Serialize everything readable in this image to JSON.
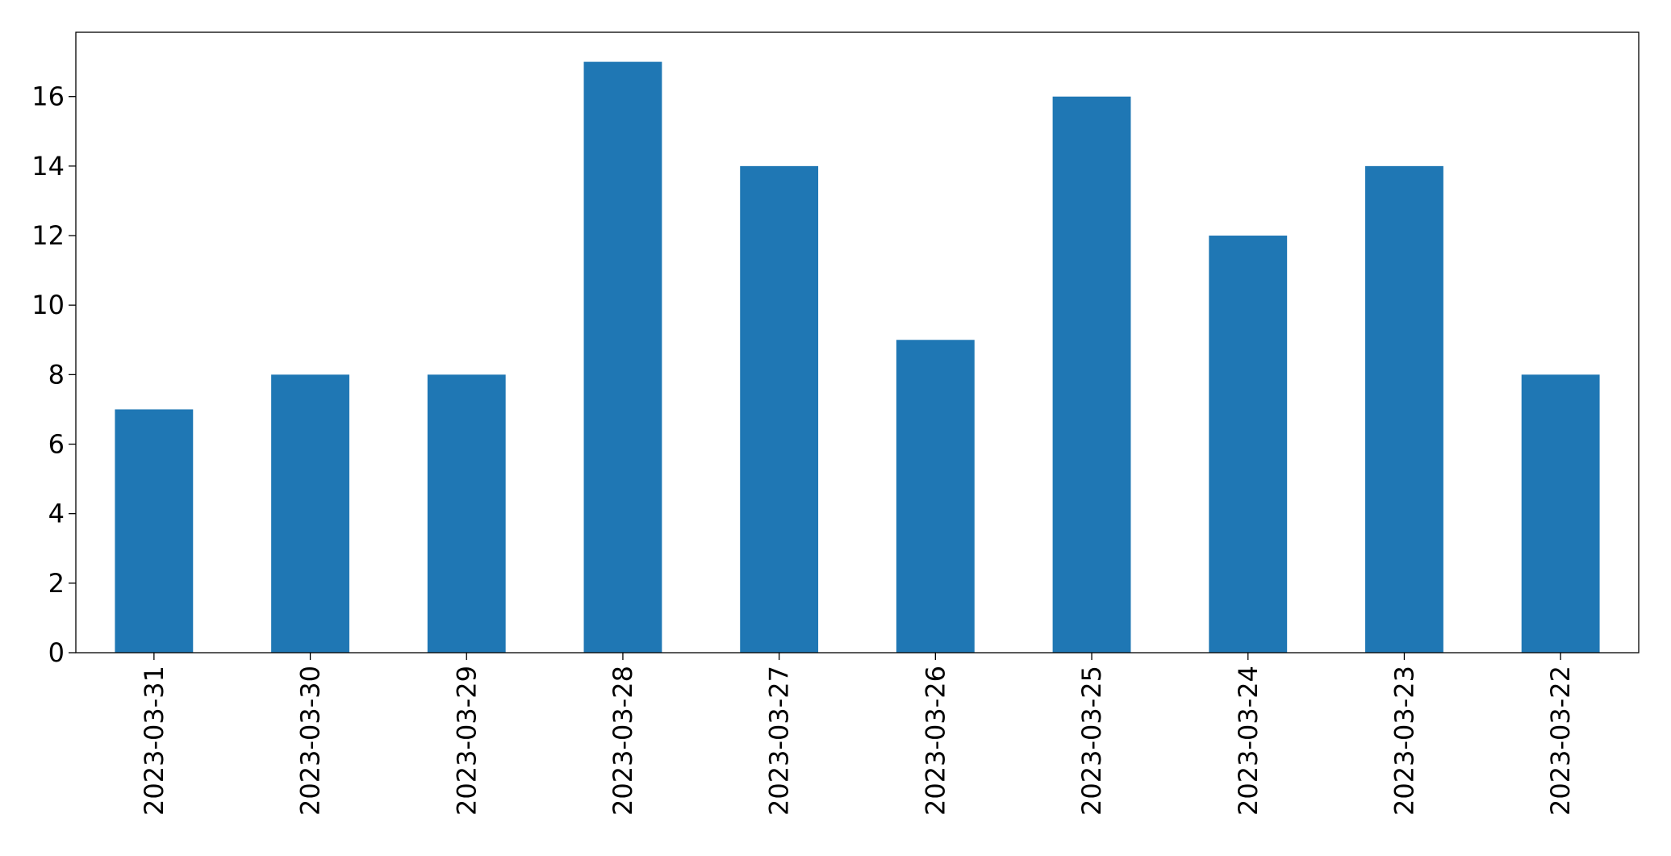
{
  "chart_data": {
    "type": "bar",
    "categories": [
      "2023-03-31",
      "2023-03-30",
      "2023-03-29",
      "2023-03-28",
      "2023-03-27",
      "2023-03-26",
      "2023-03-25",
      "2023-03-24",
      "2023-03-23",
      "2023-03-22"
    ],
    "values": [
      7,
      8,
      8,
      17,
      14,
      9,
      16,
      12,
      14,
      8
    ],
    "color": "#1f77b4",
    "ylim": [
      0,
      17.85
    ],
    "yticks": [
      0,
      2,
      4,
      6,
      8,
      10,
      12,
      14,
      16
    ],
    "grid": false
  }
}
